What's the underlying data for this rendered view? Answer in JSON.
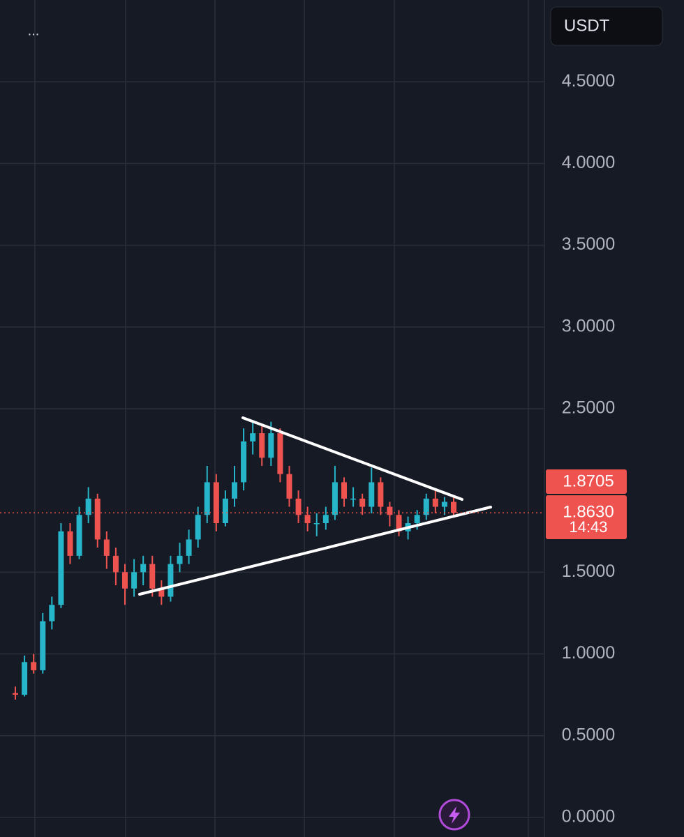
{
  "chart_data": {
    "type": "candlestick",
    "menu_label": "...",
    "currency": "USDT",
    "countdown": "14:43",
    "up_color": "#26b5c9",
    "down_color": "#ef5350",
    "open": [
      0.76,
      0.75,
      0.95,
      0.9,
      1.2,
      1.3,
      1.75,
      1.6,
      1.85,
      1.95,
      1.7,
      1.6,
      1.5,
      1.4,
      1.5,
      1.55,
      1.4,
      1.35,
      1.55,
      1.6,
      1.7,
      1.85,
      2.05,
      1.8,
      1.95,
      2.05,
      2.3,
      2.35,
      2.2,
      2.35,
      2.1,
      1.95,
      1.85,
      1.8,
      1.8,
      1.85,
      2.05,
      1.95,
      1.95,
      1.9,
      2.05,
      1.9,
      1.85,
      1.75,
      1.8,
      1.85,
      1.95,
      1.9,
      1.93
    ],
    "high": [
      0.8,
      0.99,
      1.0,
      1.25,
      1.35,
      1.8,
      1.8,
      1.9,
      2.02,
      1.98,
      1.75,
      1.65,
      1.55,
      1.58,
      1.6,
      1.6,
      1.45,
      1.6,
      1.68,
      1.76,
      1.9,
      2.15,
      2.1,
      2.0,
      2.15,
      2.38,
      2.43,
      2.4,
      2.42,
      2.38,
      2.15,
      2.0,
      1.9,
      1.86,
      1.9,
      2.15,
      2.08,
      2.02,
      1.98,
      2.14,
      2.08,
      1.93,
      1.88,
      1.84,
      1.88,
      1.98,
      2.0,
      1.96,
      1.96
    ],
    "low": [
      0.72,
      0.74,
      0.88,
      0.88,
      1.15,
      1.28,
      1.55,
      1.58,
      1.8,
      1.65,
      1.52,
      1.42,
      1.3,
      1.35,
      1.42,
      1.35,
      1.3,
      1.32,
      1.5,
      1.55,
      1.65,
      1.8,
      1.75,
      1.78,
      1.9,
      2.0,
      2.22,
      2.15,
      2.15,
      2.05,
      1.9,
      1.8,
      1.75,
      1.72,
      1.76,
      1.82,
      1.9,
      1.9,
      1.85,
      1.86,
      1.85,
      1.78,
      1.72,
      1.7,
      1.76,
      1.82,
      1.86,
      1.85,
      1.84
    ],
    "close": [
      0.75,
      0.95,
      0.9,
      1.2,
      1.3,
      1.75,
      1.6,
      1.85,
      1.95,
      1.7,
      1.6,
      1.5,
      1.4,
      1.5,
      1.55,
      1.4,
      1.35,
      1.55,
      1.6,
      1.7,
      1.85,
      2.05,
      1.8,
      1.95,
      2.05,
      2.3,
      2.35,
      2.2,
      2.35,
      2.1,
      1.95,
      1.85,
      1.8,
      1.8,
      1.85,
      2.05,
      1.95,
      1.95,
      1.9,
      2.05,
      1.9,
      1.85,
      1.75,
      1.8,
      1.85,
      1.95,
      1.9,
      1.93,
      1.863
    ],
    "ylim": [
      -0.12,
      5.0
    ],
    "yticks": [
      {
        "value": 0,
        "label": "0.0000"
      },
      {
        "value": 0.5,
        "label": "0.5000"
      },
      {
        "value": 1,
        "label": "1.0000"
      },
      {
        "value": 1.5,
        "label": "1.5000"
      },
      {
        "value": 2.5,
        "label": "2.5000"
      },
      {
        "value": 3,
        "label": "3.0000"
      },
      {
        "value": 3.5,
        "label": "3.5000"
      },
      {
        "value": 4,
        "label": "4.0000"
      },
      {
        "value": 4.5,
        "label": "4.5000"
      }
    ],
    "high_price": {
      "value": 1.8705,
      "label": "1.8705"
    },
    "last_price": {
      "value": 1.863,
      "label": "1.8630"
    },
    "grid": true
  }
}
